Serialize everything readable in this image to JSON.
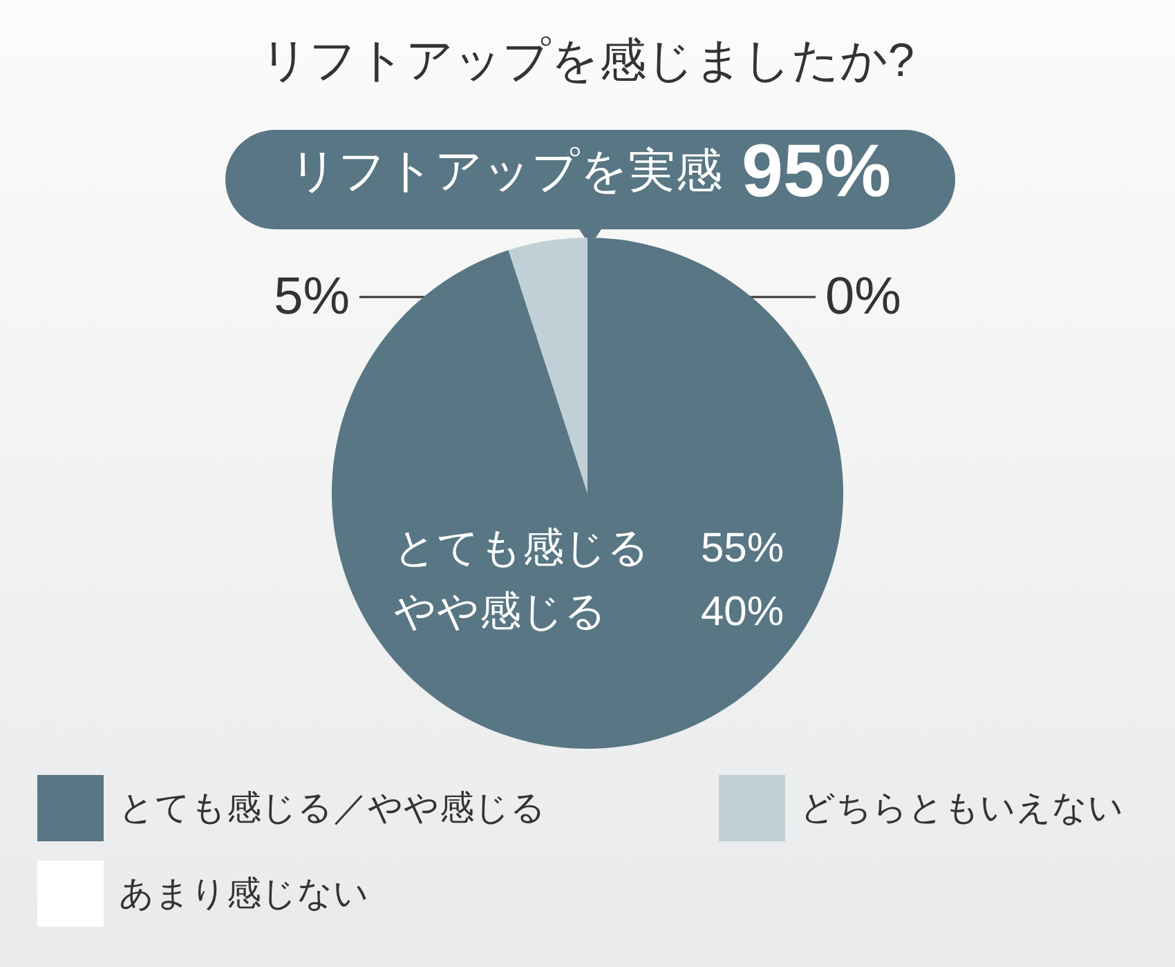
{
  "chart_data": {
    "type": "pie",
    "title": "リフトアップを感じましたか?",
    "categories": [
      "とても感じる／やや感じる",
      "どちらともいえない",
      "あまり感じない"
    ],
    "values": [
      95,
      5,
      0
    ],
    "colors": [
      "#587683",
      "#c1cfd6",
      "#ffffff"
    ],
    "value_labels": [
      null,
      "5%",
      "0%"
    ],
    "annotations": [
      "リフトアップを実感 95%",
      "とても感じる 55%",
      "やや感じる 40%"
    ],
    "legend": "bottom"
  }
}
